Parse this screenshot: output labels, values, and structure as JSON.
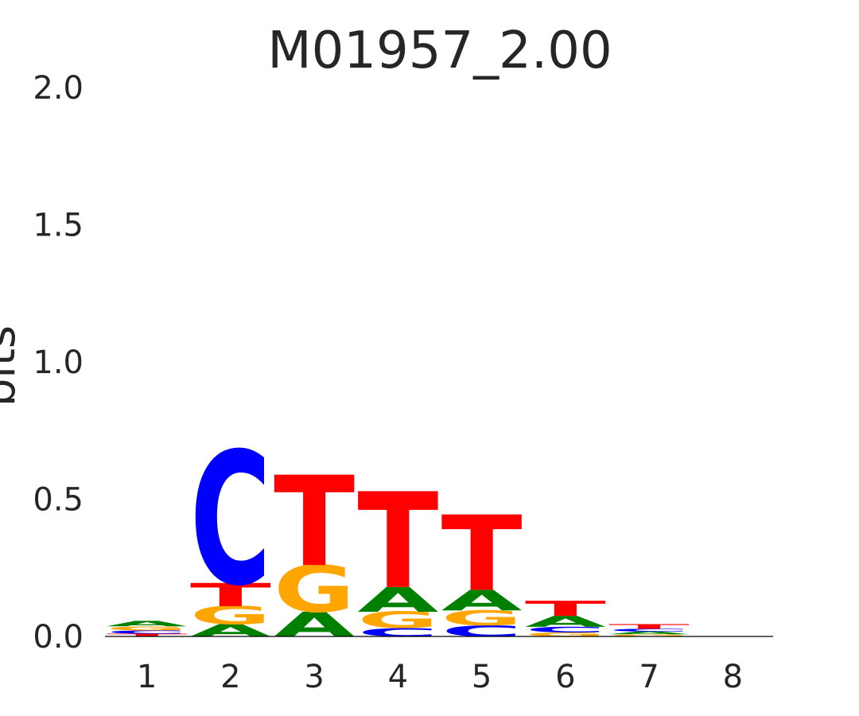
{
  "chart_data": {
    "type": "sequence-logo",
    "title": "M01957_2.00",
    "ylabel": "bits",
    "ylim": [
      0,
      2.0
    ],
    "yticks": [
      "0.0",
      "0.5",
      "1.0",
      "1.5",
      "2.0"
    ],
    "positions": [
      "1",
      "2",
      "3",
      "4",
      "5",
      "6",
      "7",
      "8"
    ],
    "colors": {
      "A": "#008000",
      "C": "#0000ff",
      "G": "#ffa500",
      "T": "#ff0000"
    },
    "stacks": [
      [
        {
          "base": "T",
          "bits": 0.01
        },
        {
          "base": "C",
          "bits": 0.012
        },
        {
          "base": "G",
          "bits": 0.015
        },
        {
          "base": "A",
          "bits": 0.02
        }
      ],
      [
        {
          "base": "A",
          "bits": 0.045
        },
        {
          "base": "G",
          "bits": 0.065
        },
        {
          "base": "T",
          "bits": 0.085
        },
        {
          "base": "C",
          "bits": 0.485
        }
      ],
      [
        {
          "base": "A",
          "bits": 0.09
        },
        {
          "base": "G",
          "bits": 0.17
        },
        {
          "base": "T",
          "bits": 0.33
        }
      ],
      [
        {
          "base": "C",
          "bits": 0.03
        },
        {
          "base": "G",
          "bits": 0.06
        },
        {
          "base": "A",
          "bits": 0.09
        },
        {
          "base": "T",
          "bits": 0.35
        }
      ],
      [
        {
          "base": "C",
          "bits": 0.04
        },
        {
          "base": "G",
          "bits": 0.055
        },
        {
          "base": "A",
          "bits": 0.075
        },
        {
          "base": "T",
          "bits": 0.275
        }
      ],
      [
        {
          "base": "G",
          "bits": 0.015
        },
        {
          "base": "C",
          "bits": 0.02
        },
        {
          "base": "A",
          "bits": 0.04
        },
        {
          "base": "T",
          "bits": 0.055
        }
      ],
      [
        {
          "base": "G",
          "bits": 0.008
        },
        {
          "base": "A",
          "bits": 0.01
        },
        {
          "base": "C",
          "bits": 0.01
        },
        {
          "base": "T",
          "bits": 0.017
        }
      ],
      []
    ]
  }
}
